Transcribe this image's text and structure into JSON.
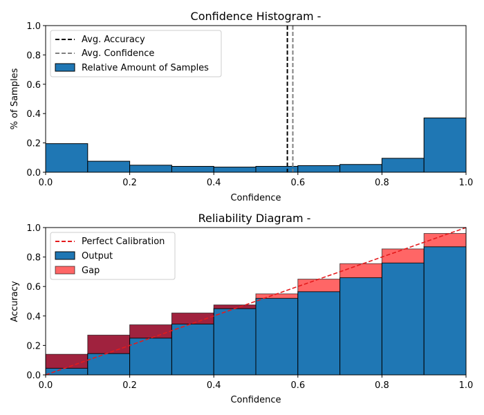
{
  "chart_data": [
    {
      "type": "bar",
      "title": "Confidence Histogram -",
      "xlabel": "Confidence",
      "ylabel": "% of Samples",
      "xlim": [
        0,
        1
      ],
      "ylim": [
        0,
        1
      ],
      "xticks": [
        "0.0",
        "0.2",
        "0.4",
        "0.6",
        "0.8",
        "1.0"
      ],
      "yticks": [
        "0.0",
        "0.2",
        "0.4",
        "0.6",
        "0.8",
        "1.0"
      ],
      "bin_edges": [
        0.0,
        0.1,
        0.2,
        0.3,
        0.4,
        0.5,
        0.6,
        0.7,
        0.8,
        0.9,
        1.0
      ],
      "series": [
        {
          "name": "Relative Amount of Samples",
          "color": "#1f77b4",
          "values": [
            0.195,
            0.075,
            0.048,
            0.04,
            0.035,
            0.04,
            0.045,
            0.053,
            0.095,
            0.37
          ]
        }
      ],
      "vlines": [
        {
          "name": "Avg. Accuracy",
          "x": 0.575,
          "color": "#000000",
          "style": "dashed"
        },
        {
          "name": "Avg. Confidence",
          "x": 0.588,
          "color": "#808080",
          "style": "dashed"
        }
      ],
      "legend": "top-left",
      "grid": false
    },
    {
      "type": "bar",
      "title": "Reliability Diagram -",
      "xlabel": "Confidence",
      "ylabel": "Accuracy",
      "xlim": [
        0,
        1
      ],
      "ylim": [
        0,
        1
      ],
      "xticks": [
        "0.0",
        "0.2",
        "0.4",
        "0.6",
        "0.8",
        "1.0"
      ],
      "yticks": [
        "0.0",
        "0.2",
        "0.4",
        "0.6",
        "0.8",
        "1.0"
      ],
      "bin_edges": [
        0.0,
        0.1,
        0.2,
        0.3,
        0.4,
        0.5,
        0.6,
        0.7,
        0.8,
        0.9,
        1.0
      ],
      "series": [
        {
          "name": "Output",
          "color": "#1f77b4",
          "values": [
            0.045,
            0.145,
            0.25,
            0.345,
            0.45,
            0.52,
            0.565,
            0.66,
            0.76,
            0.87
          ]
        },
        {
          "name": "Gap",
          "color": "#ff6666",
          "overlap_color": "#a0223e",
          "values": [
            0.14,
            0.27,
            0.34,
            0.42,
            0.475,
            0.55,
            0.65,
            0.755,
            0.855,
            0.96
          ]
        }
      ],
      "reference_line": {
        "name": "Perfect Calibration",
        "x": [
          0,
          1
        ],
        "y": [
          0,
          1
        ],
        "color": "#e41a1c",
        "style": "dashed"
      },
      "legend": "top-left",
      "grid": false
    }
  ]
}
